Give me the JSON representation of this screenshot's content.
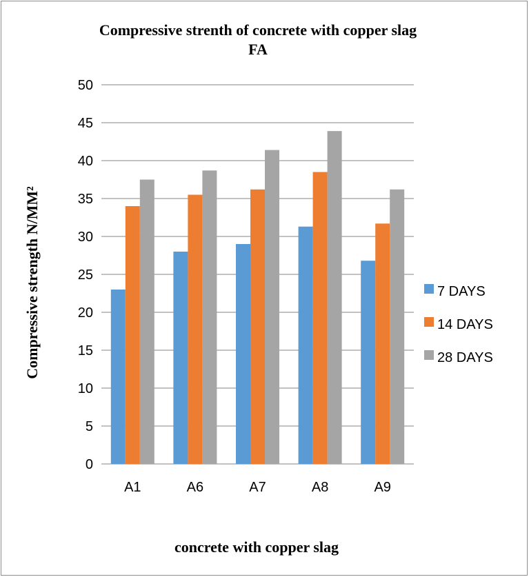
{
  "chart_data": {
    "type": "bar",
    "title": "Compressive strenth of concrete with copper slag",
    "subtitle": "FA",
    "xlabel": "concrete with copper slag",
    "ylabel": "Compressive strength N/MM²",
    "categories": [
      "A1",
      "A6",
      "A7",
      "A8",
      "A9"
    ],
    "ylim": [
      0,
      50
    ],
    "yticks": [
      0,
      5,
      10,
      15,
      20,
      25,
      30,
      35,
      40,
      45,
      50
    ],
    "grid": true,
    "legend_position": "right",
    "series": [
      {
        "name": "7 DAYS",
        "color": "#5b9bd5",
        "values": [
          23.0,
          28.0,
          29.0,
          31.3,
          26.8
        ]
      },
      {
        "name": "14 DAYS",
        "color": "#ed7d31",
        "values": [
          34.0,
          35.5,
          36.2,
          38.5,
          31.7
        ]
      },
      {
        "name": "28 DAYS",
        "color": "#a5a5a5",
        "values": [
          37.5,
          38.7,
          41.4,
          43.9,
          36.2
        ]
      }
    ]
  }
}
